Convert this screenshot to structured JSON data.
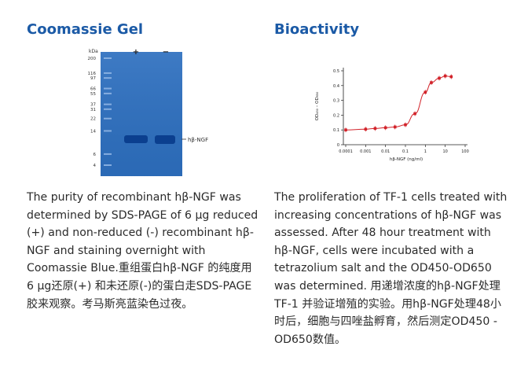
{
  "left": {
    "heading": "Coomassie Gel",
    "gel": {
      "unit_label": "kDa",
      "lane_labels": [
        "+",
        "−"
      ],
      "marker_values": [
        200,
        116,
        97,
        66,
        55,
        37,
        31,
        22,
        14,
        6,
        4
      ],
      "band_label": "hβ-NGF",
      "band_marker_kda": 14,
      "colors": {
        "gel": "#2d6fbf",
        "band": "#0b3f8f",
        "marker": "#8eb4e3"
      }
    },
    "description": "The purity of recombinant hβ-NGF was determined by SDS-PAGE of 6 µg reduced (+) and non-reduced (-) recombinant hβ-NGF and staining overnight with Coomassie Blue.重组蛋白hβ-NGF 的纯度用 6 µg还原(+) 和未还原(-)的蛋白走SDS-PAGE 胶来观察。考马斯亮蓝染色过夜。"
  },
  "right": {
    "heading": "Bioactivity",
    "description": "The proliferation of TF-1 cells treated with increasing concentrations of hβ-NGF was assessed. After 48 hour treatment with hβ-NGF, cells were incubated with a tetrazolium salt and the OD450-OD650 was determined. 用递增浓度的hβ-NGF处理TF-1 并验证增殖的实验。用hβ-NGF处理48小时后，细胞与四唑盐孵育，然后测定OD450 - OD650数值。"
  },
  "chart_data": {
    "type": "scatter",
    "xlabel": "hβ-NGF (ng/ml)",
    "ylabel": "OD₄₅₀ – OD₆₅₀",
    "x_scale": "log",
    "xlim": [
      0.0001,
      100
    ],
    "ylim": [
      0,
      0.5
    ],
    "x_ticks": [
      "0.0001",
      "0.001",
      "0.01",
      "0.1",
      "1",
      "10",
      "100"
    ],
    "y_ticks": [
      "0",
      "0.1",
      "0.2",
      "0.3",
      "0.4",
      "0.5"
    ],
    "series": [
      {
        "x": [
          0.0001,
          0.001,
          0.003,
          0.01,
          0.03,
          0.1,
          0.3,
          1,
          2,
          5,
          10,
          20
        ],
        "y": [
          0.1,
          0.105,
          0.11,
          0.115,
          0.12,
          0.135,
          0.21,
          0.355,
          0.42,
          0.45,
          0.465,
          0.46
        ],
        "color": "#d2232a"
      }
    ],
    "grid": false,
    "legend": "none"
  }
}
